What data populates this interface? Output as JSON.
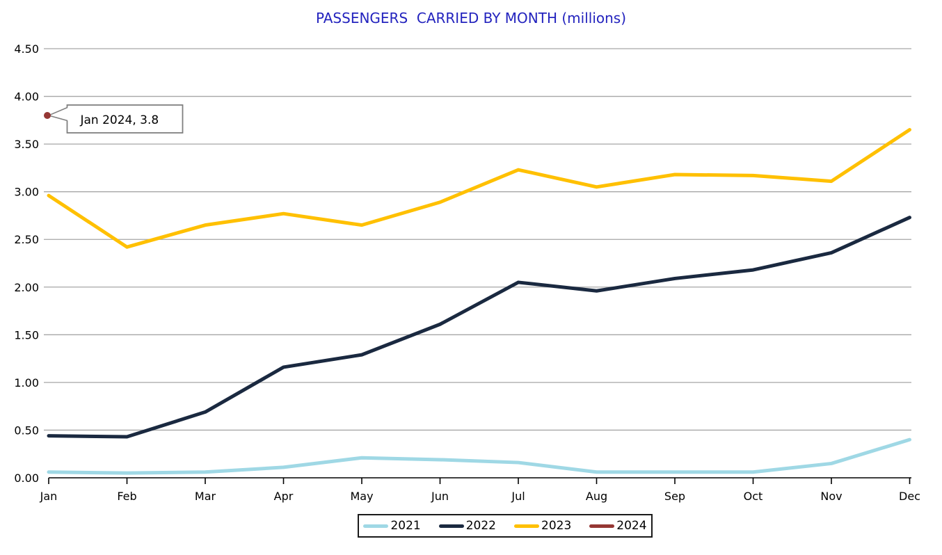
{
  "title": "PASSENGERS  CARRIED BY MONTH (millions)",
  "colors": {
    "title": "#2323BE",
    "gridline": "#A6A6A6",
    "axis": "#000000",
    "axis_text": "#000000",
    "callout_border": "#7F7F7F",
    "series_2021": "#9FD8E5",
    "series_2022": "#1A2940",
    "series_2023": "#FFC000",
    "series_2024": "#953734"
  },
  "chart_data": {
    "type": "line",
    "title": "PASSENGERS  CARRIED BY MONTH (millions)",
    "xlabel": "",
    "ylabel": "",
    "categories": [
      "Jan",
      "Feb",
      "Mar",
      "Apr",
      "May",
      "Jun",
      "Jul",
      "Aug",
      "Sep",
      "Oct",
      "Nov",
      "Dec"
    ],
    "y_tick_labels": [
      "0.00",
      "0.50",
      "1.00",
      "1.50",
      "2.00",
      "2.50",
      "3.00",
      "3.50",
      "4.00",
      "4.50"
    ],
    "ylim": [
      0,
      4.5
    ],
    "ytick_step": 0.5,
    "grid": true,
    "legend_position": "bottom",
    "series": [
      {
        "name": "2021",
        "color": "#9FD8E5",
        "values": [
          0.06,
          0.05,
          0.06,
          0.11,
          0.21,
          0.19,
          0.16,
          0.06,
          0.06,
          0.06,
          0.15,
          0.4
        ]
      },
      {
        "name": "2022",
        "color": "#1A2940",
        "values": [
          0.44,
          0.43,
          0.69,
          1.16,
          1.29,
          1.61,
          2.05,
          1.96,
          2.09,
          2.18,
          2.36,
          2.73
        ]
      },
      {
        "name": "2023",
        "color": "#FFC000",
        "values": [
          2.96,
          2.42,
          2.65,
          2.77,
          2.65,
          2.89,
          3.23,
          3.05,
          3.18,
          3.17,
          3.11,
          3.65
        ]
      },
      {
        "name": "2024",
        "color": "#953734",
        "values": [
          3.8
        ]
      }
    ],
    "annotation": {
      "text": "Jan 2024,  3.8",
      "series": "2024",
      "category": "Jan",
      "value": 3.8
    }
  }
}
